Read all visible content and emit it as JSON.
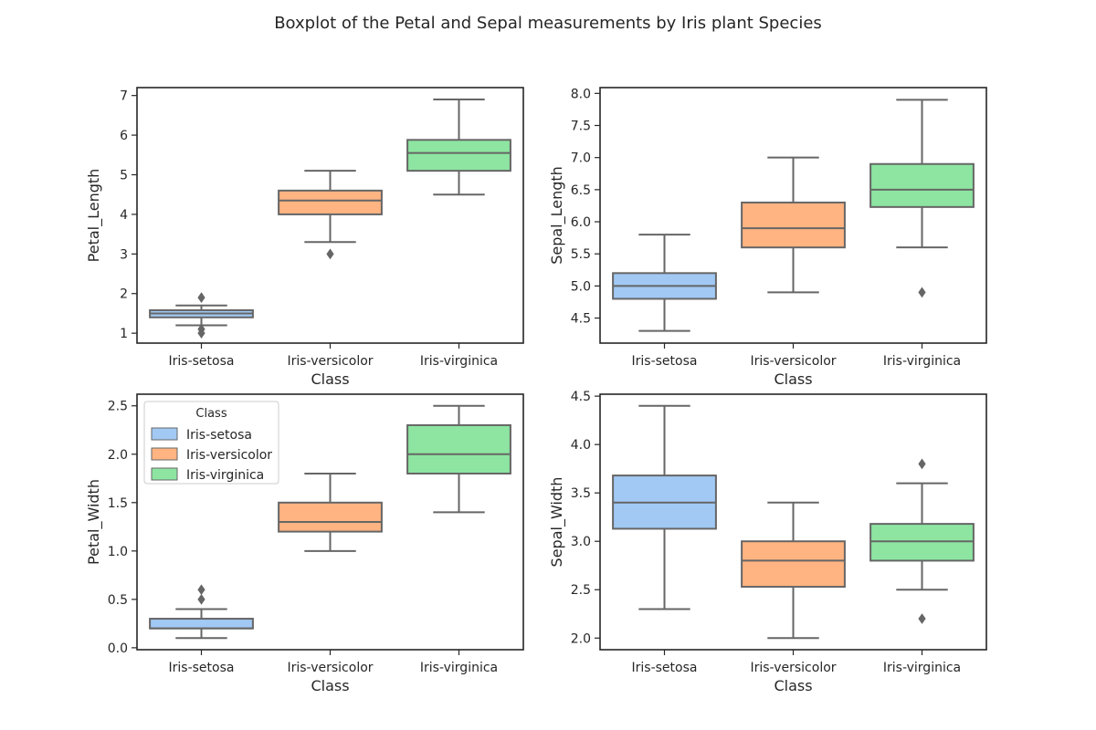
{
  "figure_title": "Boxplot of the Petal and Sepal measurements by Iris plant Species",
  "colors": {
    "Iris-setosa": "#a1c9f4",
    "Iris-versicolor": "#ffb482",
    "Iris-virginica": "#8de5a1",
    "line": "#666666",
    "axes": "#262626"
  },
  "legend": {
    "title": "Class",
    "entries": [
      "Iris-setosa",
      "Iris-versicolor",
      "Iris-virginica"
    ],
    "placement": "upper-left",
    "panel": 2
  },
  "chart_data": [
    {
      "type": "box",
      "xlabel": "Class",
      "ylabel": "Petal_Length",
      "categories": [
        "Iris-setosa",
        "Iris-versicolor",
        "Iris-virginica"
      ],
      "ylim": [
        0.75,
        7.2
      ],
      "yticks": [
        1,
        2,
        3,
        4,
        5,
        6,
        7
      ],
      "yticklabels": [
        "1",
        "2",
        "3",
        "4",
        "5",
        "6",
        "7"
      ],
      "boxes": [
        {
          "whislo": 1.2,
          "q1": 1.4,
          "med": 1.5,
          "q3": 1.58,
          "whishi": 1.7,
          "fliers": [
            1.9,
            1.0,
            1.1
          ]
        },
        {
          "whislo": 3.3,
          "q1": 4.0,
          "med": 4.35,
          "q3": 4.6,
          "whishi": 5.1,
          "fliers": [
            3.0
          ]
        },
        {
          "whislo": 4.5,
          "q1": 5.1,
          "med": 5.55,
          "q3": 5.88,
          "whishi": 6.9,
          "fliers": []
        }
      ]
    },
    {
      "type": "box",
      "xlabel": "Class",
      "ylabel": "Sepal_Length",
      "categories": [
        "Iris-setosa",
        "Iris-versicolor",
        "Iris-virginica"
      ],
      "ylim": [
        4.11,
        8.09
      ],
      "yticks": [
        4.5,
        5.0,
        5.5,
        6.0,
        6.5,
        7.0,
        7.5,
        8.0
      ],
      "yticklabels": [
        "4.5",
        "5.0",
        "5.5",
        "6.0",
        "6.5",
        "7.0",
        "7.5",
        "8.0"
      ],
      "boxes": [
        {
          "whislo": 4.3,
          "q1": 4.8,
          "med": 5.0,
          "q3": 5.2,
          "whishi": 5.8,
          "fliers": []
        },
        {
          "whislo": 4.9,
          "q1": 5.6,
          "med": 5.9,
          "q3": 6.3,
          "whishi": 7.0,
          "fliers": []
        },
        {
          "whislo": 5.6,
          "q1": 6.23,
          "med": 6.5,
          "q3": 6.9,
          "whishi": 7.9,
          "fliers": [
            4.9
          ]
        }
      ]
    },
    {
      "type": "box",
      "xlabel": "Class",
      "ylabel": "Petal_Width",
      "categories": [
        "Iris-setosa",
        "Iris-versicolor",
        "Iris-virginica"
      ],
      "ylim": [
        -0.02,
        2.62
      ],
      "yticks": [
        0.0,
        0.5,
        1.0,
        1.5,
        2.0,
        2.5
      ],
      "yticklabels": [
        "0.0",
        "0.5",
        "1.0",
        "1.5",
        "2.0",
        "2.5"
      ],
      "boxes": [
        {
          "whislo": 0.1,
          "q1": 0.2,
          "med": 0.2,
          "q3": 0.3,
          "whishi": 0.4,
          "fliers": [
            0.5,
            0.6
          ]
        },
        {
          "whislo": 1.0,
          "q1": 1.2,
          "med": 1.3,
          "q3": 1.5,
          "whishi": 1.8,
          "fliers": []
        },
        {
          "whislo": 1.4,
          "q1": 1.8,
          "med": 2.0,
          "q3": 2.3,
          "whishi": 2.5,
          "fliers": []
        }
      ]
    },
    {
      "type": "box",
      "xlabel": "Class",
      "ylabel": "Sepal_Width",
      "categories": [
        "Iris-setosa",
        "Iris-versicolor",
        "Iris-virginica"
      ],
      "ylim": [
        1.88,
        4.52
      ],
      "yticks": [
        2.0,
        2.5,
        3.0,
        3.5,
        4.0,
        4.5
      ],
      "yticklabels": [
        "2.0",
        "2.5",
        "3.0",
        "3.5",
        "4.0",
        "4.5"
      ],
      "boxes": [
        {
          "whislo": 2.3,
          "q1": 3.13,
          "med": 3.4,
          "q3": 3.68,
          "whishi": 4.4,
          "fliers": []
        },
        {
          "whislo": 2.0,
          "q1": 2.53,
          "med": 2.8,
          "q3": 3.0,
          "whishi": 3.4,
          "fliers": []
        },
        {
          "whislo": 2.5,
          "q1": 2.8,
          "med": 3.0,
          "q3": 3.18,
          "whishi": 3.6,
          "fliers": [
            3.8,
            2.2
          ]
        }
      ]
    }
  ]
}
